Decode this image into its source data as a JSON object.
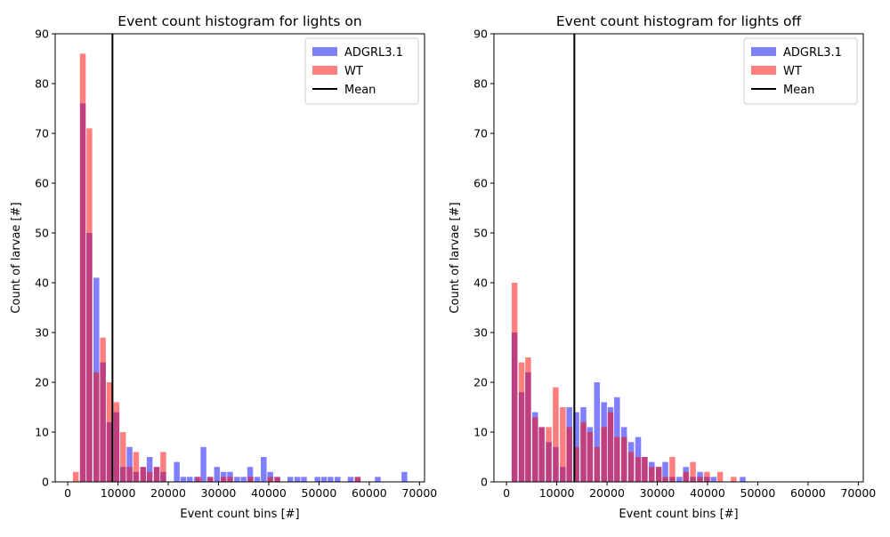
{
  "colors": {
    "adgrl": "#0000ff",
    "wt": "#ff0000",
    "mean": "#000000"
  },
  "chart_data": [
    {
      "type": "bar",
      "title": "Event count histogram for lights on",
      "xlabel": "Event count bins [#]",
      "ylabel": "Count of larvae [#]",
      "xlim": [
        -2500,
        71000
      ],
      "ylim": [
        0,
        90
      ],
      "xticks": [
        0,
        10000,
        20000,
        30000,
        40000,
        50000,
        60000,
        70000
      ],
      "yticks": [
        0,
        10,
        20,
        30,
        40,
        50,
        60,
        70,
        80,
        90
      ],
      "grid": false,
      "legend_position": "top-right",
      "bin_width": 1350,
      "mean": 8900,
      "mean_label": "Mean",
      "series": [
        {
          "name": "ADGRL3.1",
          "color": "#0000ff",
          "alpha": 0.5,
          "points": [
            [
              3000,
              76
            ],
            [
              4300,
              50
            ],
            [
              5700,
              41
            ],
            [
              7000,
              24
            ],
            [
              8300,
              12
            ],
            [
              9700,
              14
            ],
            [
              11000,
              3
            ],
            [
              12300,
              7
            ],
            [
              13600,
              2
            ],
            [
              15000,
              3
            ],
            [
              16300,
              5
            ],
            [
              17700,
              3
            ],
            [
              19000,
              2
            ],
            [
              21700,
              4
            ],
            [
              23000,
              1
            ],
            [
              24300,
              1
            ],
            [
              25700,
              1
            ],
            [
              27000,
              7
            ],
            [
              28300,
              1
            ],
            [
              29700,
              3
            ],
            [
              31000,
              2
            ],
            [
              32300,
              2
            ],
            [
              33700,
              1
            ],
            [
              35000,
              1
            ],
            [
              36300,
              3
            ],
            [
              37700,
              1
            ],
            [
              39000,
              5
            ],
            [
              40300,
              2
            ],
            [
              41700,
              1
            ],
            [
              44300,
              1
            ],
            [
              45700,
              1
            ],
            [
              47000,
              1
            ],
            [
              49700,
              1
            ],
            [
              51000,
              1
            ],
            [
              52300,
              1
            ],
            [
              53700,
              1
            ],
            [
              56300,
              1
            ],
            [
              57700,
              1
            ],
            [
              61700,
              1
            ],
            [
              67000,
              2
            ]
          ]
        },
        {
          "name": "WT",
          "color": "#ff0000",
          "alpha": 0.5,
          "points": [
            [
              1600,
              2
            ],
            [
              3000,
              86
            ],
            [
              4300,
              71
            ],
            [
              5700,
              22
            ],
            [
              7000,
              29
            ],
            [
              8300,
              20
            ],
            [
              9700,
              16
            ],
            [
              11000,
              10
            ],
            [
              12300,
              3
            ],
            [
              13600,
              6
            ],
            [
              15000,
              3
            ],
            [
              16300,
              2
            ],
            [
              17700,
              3
            ],
            [
              19000,
              6
            ],
            [
              26000,
              1
            ],
            [
              28400,
              1
            ],
            [
              31000,
              1
            ],
            [
              32300,
              1
            ],
            [
              36400,
              1
            ],
            [
              40300,
              1
            ],
            [
              41700,
              1
            ],
            [
              57700,
              1
            ]
          ]
        }
      ]
    },
    {
      "type": "bar",
      "title": "Event count histogram for lights off",
      "xlabel": "Event count bins [#]",
      "ylabel": "Count of larvae [#]",
      "xlim": [
        -2500,
        71000
      ],
      "ylim": [
        0,
        90
      ],
      "xticks": [
        0,
        10000,
        20000,
        30000,
        40000,
        50000,
        60000,
        70000
      ],
      "yticks": [
        0,
        10,
        20,
        30,
        40,
        50,
        60,
        70,
        80,
        90
      ],
      "grid": false,
      "legend_position": "top-right",
      "bin_width": 1350,
      "mean": 13500,
      "mean_label": "Mean",
      "series": [
        {
          "name": "ADGRL3.1",
          "color": "#0000ff",
          "alpha": 0.5,
          "points": [
            [
              1600,
              30
            ],
            [
              3000,
              18
            ],
            [
              4300,
              22
            ],
            [
              5700,
              14
            ],
            [
              7000,
              11
            ],
            [
              8400,
              8
            ],
            [
              9800,
              7
            ],
            [
              11200,
              3
            ],
            [
              12500,
              15
            ],
            [
              13900,
              14
            ],
            [
              15300,
              15
            ],
            [
              16600,
              11
            ],
            [
              18000,
              20
            ],
            [
              19400,
              16
            ],
            [
              20700,
              15
            ],
            [
              22000,
              17
            ],
            [
              23400,
              11
            ],
            [
              24800,
              8
            ],
            [
              26200,
              9
            ],
            [
              27500,
              5
            ],
            [
              28900,
              4
            ],
            [
              30300,
              3
            ],
            [
              31600,
              4
            ],
            [
              33000,
              1
            ],
            [
              34400,
              1
            ],
            [
              35700,
              3
            ],
            [
              37100,
              1
            ],
            [
              38500,
              2
            ],
            [
              39900,
              1
            ],
            [
              41200,
              1
            ],
            [
              47000,
              1
            ]
          ]
        },
        {
          "name": "WT",
          "color": "#ff0000",
          "alpha": 0.5,
          "points": [
            [
              1600,
              40
            ],
            [
              3000,
              24
            ],
            [
              4300,
              25
            ],
            [
              5700,
              13
            ],
            [
              7000,
              11
            ],
            [
              8400,
              11
            ],
            [
              9800,
              19
            ],
            [
              11200,
              15
            ],
            [
              12500,
              11
            ],
            [
              13900,
              7
            ],
            [
              15300,
              12
            ],
            [
              16600,
              10
            ],
            [
              18000,
              7
            ],
            [
              19400,
              11
            ],
            [
              20700,
              14
            ],
            [
              22000,
              9
            ],
            [
              23400,
              9
            ],
            [
              24800,
              6
            ],
            [
              26200,
              5
            ],
            [
              27500,
              5
            ],
            [
              28900,
              3
            ],
            [
              30300,
              3
            ],
            [
              31600,
              1
            ],
            [
              33000,
              5
            ],
            [
              35700,
              2
            ],
            [
              37100,
              4
            ],
            [
              38500,
              1
            ],
            [
              39900,
              2
            ],
            [
              42500,
              2
            ],
            [
              45200,
              1
            ]
          ]
        }
      ]
    }
  ]
}
